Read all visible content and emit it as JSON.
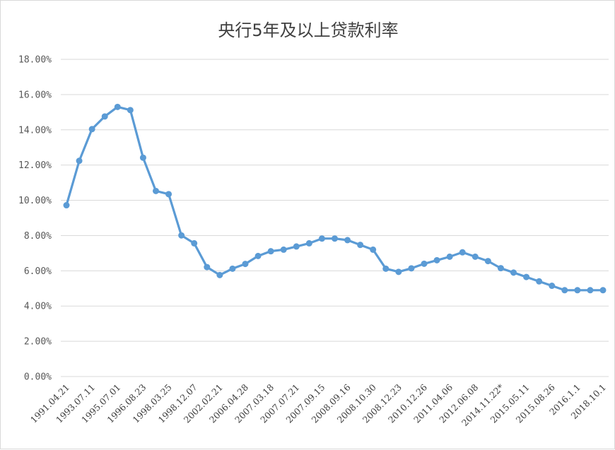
{
  "chart_data": {
    "type": "line",
    "title": "央行5年及以上贷款利率",
    "xlabel": "",
    "ylabel": "",
    "ylim": [
      0,
      18
    ],
    "yticks": [
      "0.00%",
      "2.00%",
      "4.00%",
      "6.00%",
      "8.00%",
      "10.00%",
      "12.00%",
      "14.00%",
      "16.00%",
      "18.00%"
    ],
    "grid": "horizontal",
    "legend": "none",
    "line_color": "#5b9bd5",
    "x_tick_labels": [
      "1991.04.21",
      "1993.07.11",
      "1995.07.01",
      "1996.08.23",
      "1998.03.25",
      "1998.12.07",
      "2002.02.21",
      "2006.04.28",
      "2007.03.18",
      "2007.07.21",
      "2007.09.15",
      "2008.09.16",
      "2008.10.30",
      "2008.12.23",
      "2010.12.26",
      "2011.04.06",
      "2012.06.08",
      "2014.11.22*",
      "2015.05.11",
      "2015.08.26",
      "2016.1.1",
      "2018.10.1"
    ],
    "series": [
      {
        "values": [
          9.72,
          12.24,
          14.04,
          14.76,
          15.3,
          15.12,
          12.42,
          10.53,
          10.35,
          8.01,
          7.56,
          6.21,
          5.76,
          6.12,
          6.39,
          6.84,
          7.11,
          7.2,
          7.38,
          7.56,
          7.83,
          7.83,
          7.74,
          7.47,
          7.2,
          6.12,
          5.94,
          6.14,
          6.4,
          6.6,
          6.8,
          7.05,
          6.8,
          6.55,
          6.15,
          5.9,
          5.65,
          5.4,
          5.15,
          4.9,
          4.9,
          4.9,
          4.9
        ]
      }
    ]
  }
}
